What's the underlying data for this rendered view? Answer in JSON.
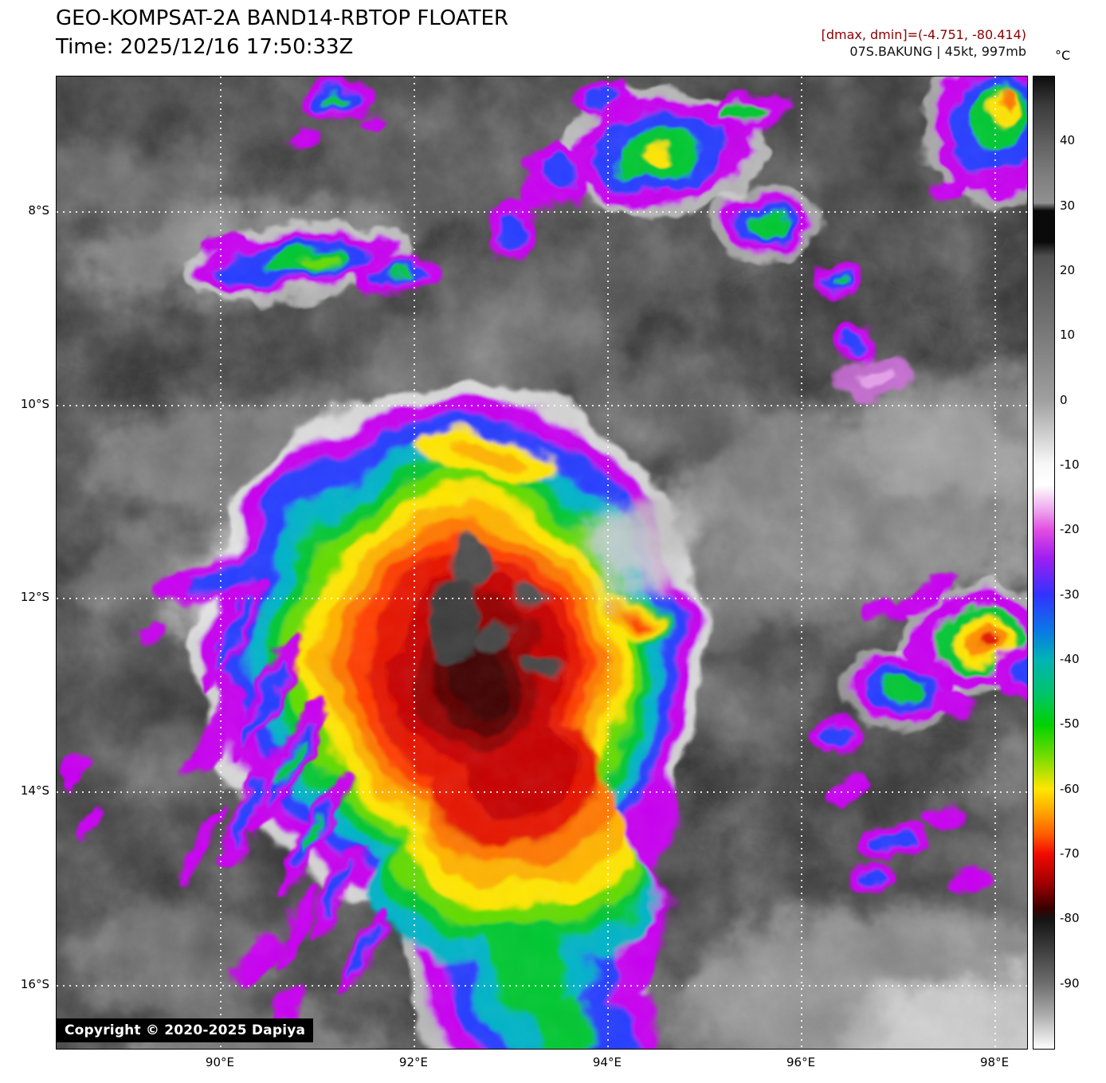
{
  "header": {
    "title": "GEO-KOMPSAT-2A BAND14-RBTOP FLOATER",
    "time": "Time: 2025/12/16 17:50:33Z",
    "dmax_dmin": "[dmax, dmin]=(-4.751, -80.414)",
    "storm_info": "07S.BAKUNG | 45kt, 997mb"
  },
  "colorbar": {
    "unit": "°C",
    "ticks": [
      "40",
      "30",
      "20",
      "10",
      "0",
      "-10",
      "-20",
      "-30",
      "-40",
      "-50",
      "-60",
      "-70",
      "-80",
      "-90"
    ]
  },
  "map": {
    "lat_labels": [
      "8°S",
      "10°S",
      "12°S",
      "14°S",
      "16°S"
    ],
    "lon_labels": [
      "90°E",
      "92°E",
      "94°E",
      "96°E",
      "98°E"
    ],
    "copyright": "Copyright © 2020-2025 Dapiya"
  },
  "colors": {
    "annotation_red": "#8b0000",
    "cold_purple": "#c800f0",
    "cold_blue": "#283cff",
    "cold_green": "#00c832",
    "cold_yellow": "#ffe600",
    "cold_red": "#e61400"
  }
}
